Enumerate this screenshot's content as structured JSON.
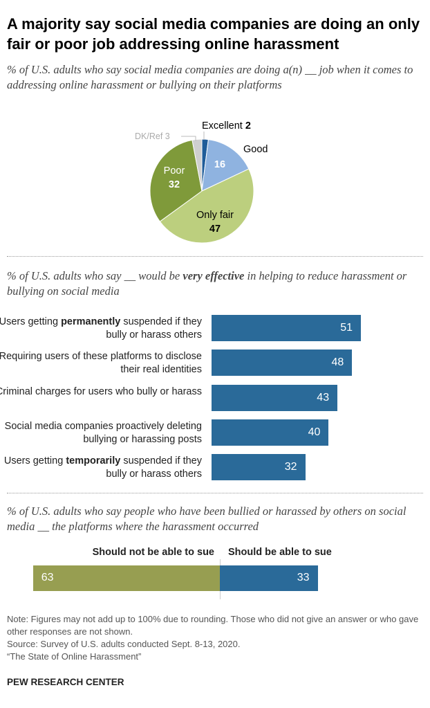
{
  "title": "A majority say social media companies are doing an only fair or poor job addressing online harassment",
  "chart_data": [
    {
      "type": "pie",
      "subtitle": "% of U.S. adults who say social media companies are doing a(n) __ job when it comes to addressing online harassment or bullying on their platforms",
      "slices": [
        {
          "label": "Excellent",
          "value": 2,
          "color": "#1f5c99"
        },
        {
          "label": "Good",
          "value": 16,
          "color": "#8fb3e0"
        },
        {
          "label": "Only fair",
          "value": 47,
          "color": "#bccf7e"
        },
        {
          "label": "Poor",
          "value": 32,
          "color": "#7f9a3a"
        },
        {
          "label": "DK/Ref",
          "value": 3,
          "color": "#cfcfcf"
        }
      ]
    },
    {
      "type": "bar",
      "subtitle_parts": [
        "% of U.S. adults who say __ would be ",
        "very effective",
        " in helping to reduce harassment or bullying on social media"
      ],
      "color": "#2a6a99",
      "categories": [
        [
          "Users getting ",
          "permanently",
          " suspended if they bully or harass others"
        ],
        [
          "Requiring users of these platforms to disclose their real identities",
          "",
          ""
        ],
        [
          "Criminal charges for users who bully or harass",
          "",
          ""
        ],
        [
          "Social media companies proactively deleting bullying or harassing posts",
          "",
          ""
        ],
        [
          "Users getting ",
          "temporarily",
          " suspended if they bully or harass others"
        ]
      ],
      "values": [
        51,
        48,
        43,
        40,
        32
      ]
    },
    {
      "type": "bar",
      "subtitle": "% of U.S. adults who say people who have been bullied or harassed by others on social media __ the platforms where the harassment occurred",
      "series": [
        {
          "name": "Should not be able to sue",
          "value": 63,
          "color": "#979e51"
        },
        {
          "name": "Should be able to sue",
          "value": 33,
          "color": "#2a6a99"
        }
      ]
    }
  ],
  "notes": [
    "Note: Figures may not add up to 100% due to rounding. Those who did not give an answer or who gave other responses are not shown.",
    "Source: Survey of U.S. adults conducted Sept. 8-13, 2020.",
    "“The State of Online Harassment”"
  ],
  "brand": "PEW RESEARCH CENTER"
}
